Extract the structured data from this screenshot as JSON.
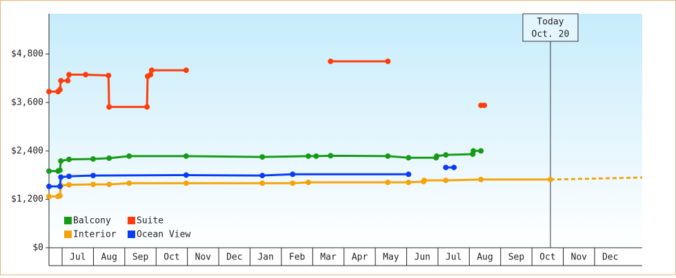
{
  "chart_data": {
    "type": "line",
    "ylim": [
      0,
      5800
    ],
    "yticks": [
      {
        "value": 0,
        "label": "$0"
      },
      {
        "value": 1200,
        "label": "$1,200"
      },
      {
        "value": 2400,
        "label": "$2,400"
      },
      {
        "value": 3600,
        "label": "$3,600"
      },
      {
        "value": 4800,
        "label": "$4,800"
      }
    ],
    "xlim": [
      -0.42,
      18.52
    ],
    "xticks": [
      {
        "value": 0.5,
        "label": "Jul"
      },
      {
        "value": 1.5,
        "label": "Aug"
      },
      {
        "value": 2.5,
        "label": "Sep"
      },
      {
        "value": 3.5,
        "label": "Oct"
      },
      {
        "value": 4.5,
        "label": "Nov"
      },
      {
        "value": 5.5,
        "label": "Dec"
      },
      {
        "value": 6.5,
        "label": "Jan"
      },
      {
        "value": 7.5,
        "label": "Feb"
      },
      {
        "value": 8.5,
        "label": "Mar"
      },
      {
        "value": 9.5,
        "label": "Apr"
      },
      {
        "value": 10.5,
        "label": "May"
      },
      {
        "value": 11.5,
        "label": "Jun"
      },
      {
        "value": 12.5,
        "label": "Jul"
      },
      {
        "value": 13.5,
        "label": "Aug"
      },
      {
        "value": 14.5,
        "label": "Sep"
      },
      {
        "value": 15.5,
        "label": "Oct"
      },
      {
        "value": 16.5,
        "label": "Nov"
      },
      {
        "value": 17.5,
        "label": "Dec"
      }
    ],
    "grid": false,
    "legend": "bottom-left",
    "annotation": {
      "x": 15.59,
      "lines": [
        "Today",
        "Oct. 20"
      ]
    },
    "series": [
      {
        "name": "Balcony",
        "color": "#179a17",
        "x": [
          -0.42,
          -0.13,
          -0.07,
          -0.04,
          0.22,
          0.99,
          1.5,
          2.14,
          3.96,
          6.39,
          7.86,
          8.11,
          8.57,
          10.4,
          11.06,
          11.94,
          11.96,
          12.25,
          13.11,
          13.13,
          13.37
        ],
        "values": [
          1900,
          1900,
          1920,
          2150,
          2190,
          2200,
          2220,
          2270,
          2270,
          2250,
          2270,
          2270,
          2280,
          2270,
          2230,
          2230,
          2270,
          2300,
          2320,
          2400,
          2400
        ]
      },
      {
        "name": "Suite",
        "color": "#ff3c0a",
        "x": [
          -0.42,
          -0.13,
          -0.07,
          -0.04,
          0.18,
          0.22,
          0.75,
          1.48,
          1.5,
          2.71,
          2.73,
          2.82,
          2.86,
          3.96,
          6,
          8.57,
          10.4,
          12,
          13.37,
          13.48
        ],
        "values": [
          3870,
          3870,
          3920,
          4140,
          4140,
          4290,
          4290,
          4270,
          3490,
          3490,
          4250,
          4290,
          4400,
          4400,
          null,
          4620,
          4620,
          null,
          3530,
          3530
        ]
      },
      {
        "name": "Interior",
        "color": "#f5a30a",
        "x": [
          -0.42,
          -0.13,
          -0.07,
          -0.04,
          0.22,
          0.99,
          1.5,
          2.14,
          3.96,
          6.39,
          7.36,
          7.86,
          10.4,
          11.06,
          11.54,
          11.56,
          12.25,
          13.37,
          15.59
        ],
        "values": [
          1270,
          1270,
          1290,
          1540,
          1560,
          1570,
          1570,
          1600,
          1600,
          1600,
          1600,
          1620,
          1620,
          1620,
          1640,
          1670,
          1670,
          1690,
          1690
        ],
        "projection": {
          "x": [
            15.59,
            18.52
          ],
          "values": [
            1690,
            1740
          ]
        }
      },
      {
        "name": "Ocean View",
        "color": "#0a3cf5",
        "x": [
          -0.42,
          -0.07,
          -0.04,
          0.22,
          0.99,
          3.96,
          6.39,
          7.36,
          11.06,
          11.6,
          12.25,
          12.51
        ],
        "values": [
          1520,
          1520,
          1750,
          1770,
          1790,
          1800,
          1790,
          1820,
          1820,
          null,
          1990,
          1990
        ]
      }
    ]
  }
}
